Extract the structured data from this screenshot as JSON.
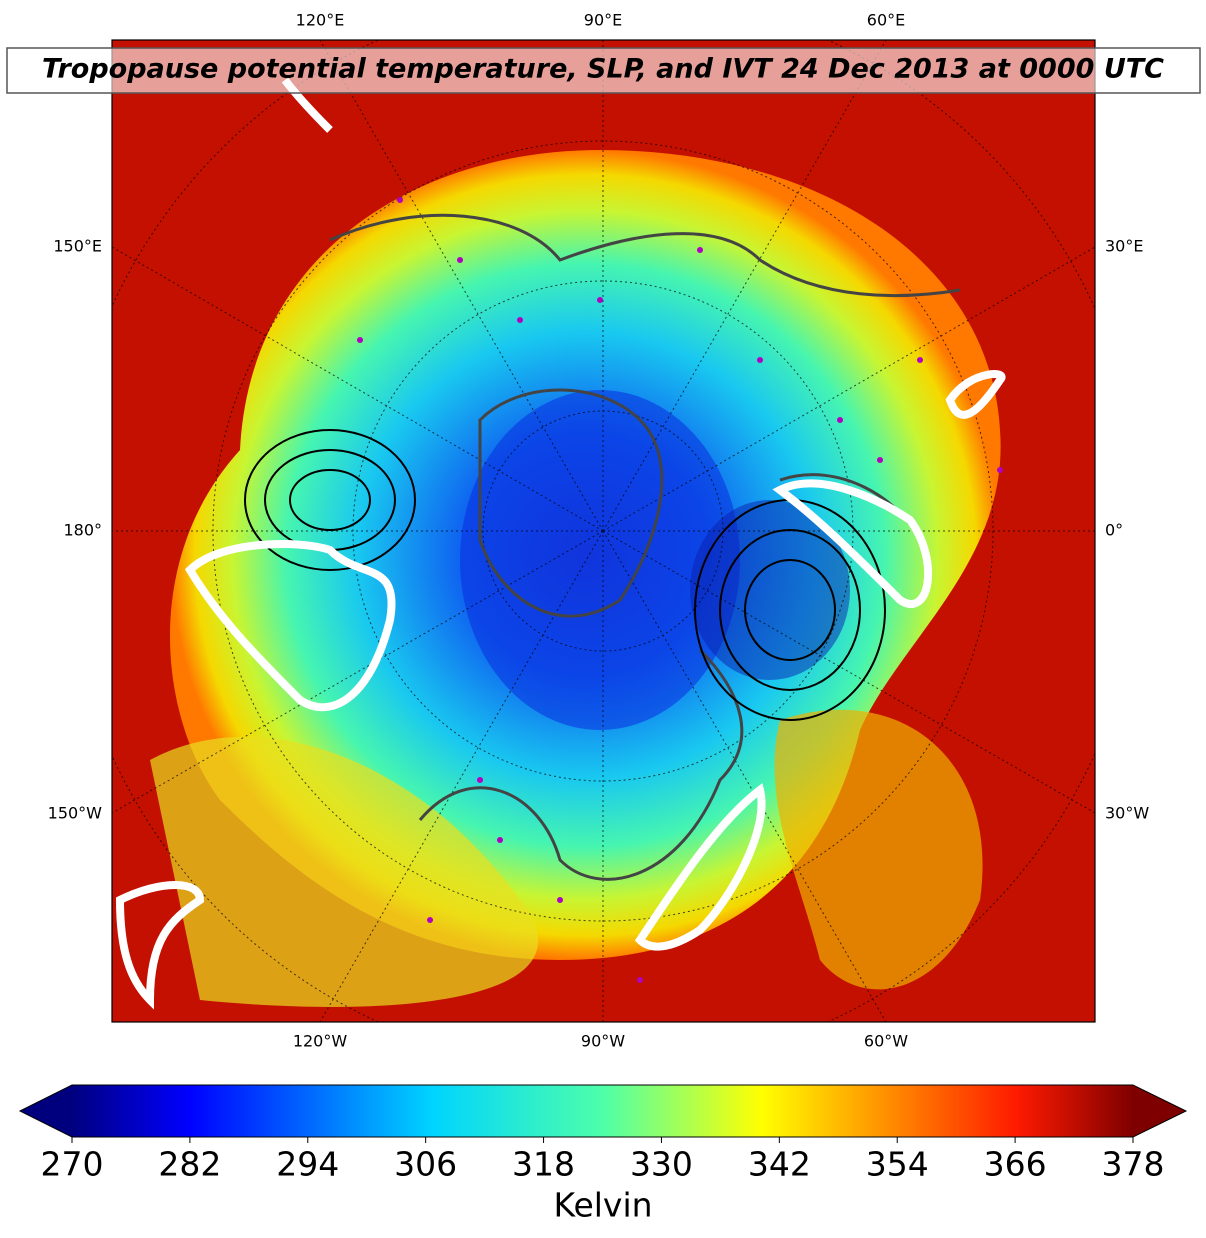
{
  "title": "Tropopause potential temperature, SLP, and IVT 24 Dec 2013 at 0000 UTC",
  "map": {
    "top_labels": [
      "120°E",
      "90°E",
      "60°E"
    ],
    "left_labels": [
      "150°E",
      "180°",
      "150°W"
    ],
    "right_labels": [
      "30°E",
      "0°",
      "30°W"
    ],
    "bottom_labels": [
      "120°W",
      "90°W",
      "60°W"
    ]
  },
  "colorbar": {
    "label": "Kelvin",
    "colormap": "jet",
    "lim": [
      270,
      378
    ],
    "ticks": [
      270,
      282,
      294,
      306,
      318,
      330,
      342,
      354,
      366,
      378
    ]
  }
}
